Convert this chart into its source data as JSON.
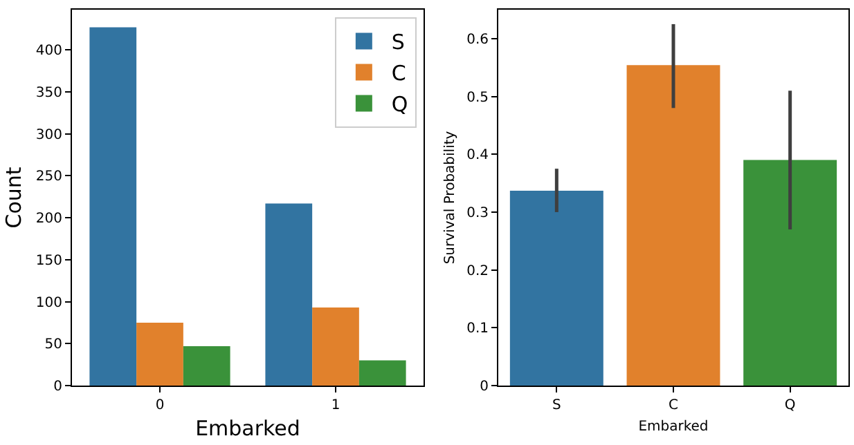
{
  "chart_data": [
    {
      "type": "bar",
      "categories": [
        "0",
        "1"
      ],
      "xlabel": "Embarked",
      "ylabel": "Count",
      "ylim": [
        0,
        448
      ],
      "yticks": [
        0,
        50,
        100,
        150,
        200,
        250,
        300,
        350,
        400
      ],
      "grid": false,
      "legend": "top right",
      "series": [
        {
          "name": "S",
          "color": "#3274a1",
          "values": [
            427,
            217
          ]
        },
        {
          "name": "C",
          "color": "#e1812c",
          "values": [
            75,
            93
          ]
        },
        {
          "name": "Q",
          "color": "#3a923a",
          "values": [
            47,
            30
          ]
        }
      ]
    },
    {
      "type": "bar",
      "categories": [
        "S",
        "C",
        "Q"
      ],
      "xlabel": "Embarked",
      "ylabel": "Survival Probability",
      "ylim": [
        0,
        0.65
      ],
      "yticks": [
        0.0,
        0.1,
        0.2,
        0.3,
        0.4,
        0.5,
        0.6
      ],
      "grid": false,
      "values": [
        0.337,
        0.554,
        0.39
      ],
      "colors": [
        "#3274a1",
        "#e1812c",
        "#3a923a"
      ],
      "errors": [
        [
          0.3,
          0.375
        ],
        [
          0.48,
          0.625
        ],
        [
          0.27,
          0.51
        ]
      ]
    }
  ]
}
